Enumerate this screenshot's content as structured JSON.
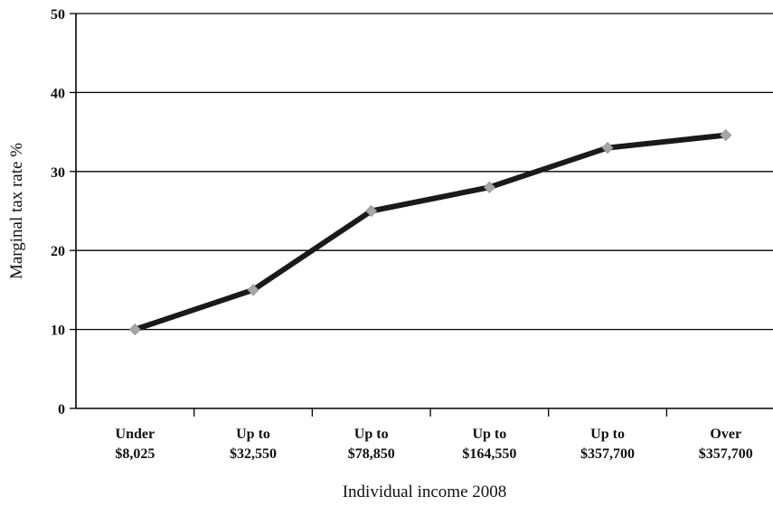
{
  "chart_data": {
    "type": "line",
    "xlabel": "Individual income 2008",
    "ylabel": "Marginal tax rate %",
    "ylim": [
      0,
      50
    ],
    "yticks": [
      0,
      10,
      20,
      30,
      40,
      50
    ],
    "grid": true,
    "categories": [
      [
        "Under",
        "$8,025"
      ],
      [
        "Up to",
        "$32,550"
      ],
      [
        "Up to",
        "$78,850"
      ],
      [
        "Up to",
        "$164,550"
      ],
      [
        "Up to",
        "$357,700"
      ],
      [
        "Over",
        "$357,700"
      ]
    ],
    "series": [
      {
        "values": [
          10,
          15,
          25,
          28,
          33,
          34.6
        ]
      }
    ],
    "colors": {
      "line": "#1a1a1a",
      "marker": "#a6a6a6",
      "grid": "#000000"
    }
  }
}
